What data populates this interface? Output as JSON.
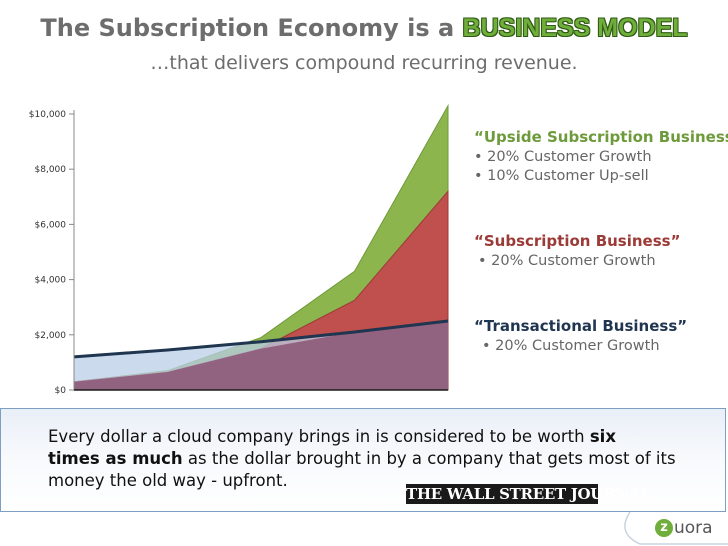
{
  "slide": {
    "title_main": "The Subscription Economy is a ",
    "title_accent": "BUSINESS MODEL",
    "subtitle": "…that delivers compound recurring revenue."
  },
  "legend": [
    {
      "title": "“Upside Subscription Business”",
      "items": [
        "• 20% Customer Growth",
        "• 10% Customer Up-sell"
      ],
      "color": "#8db54e"
    },
    {
      "title": "“Subscription Business”",
      "items": [
        "• 20% Customer Growth"
      ],
      "color": "#c0504d"
    },
    {
      "title": "“Transactional  Business”",
      "items": [
        "• 20% Customer Growth"
      ],
      "color": "#1f3550"
    }
  ],
  "quote": {
    "part1": "Every dollar a cloud company brings in is considered to be worth ",
    "bold1": "six",
    "bold2": "times as much",
    "part2": " as the dollar brought in by a company that gets most of its money the old way - upfront."
  },
  "source": "THE WALL STREET JOURNAL.",
  "brand": {
    "mark": "z",
    "text": "uora"
  },
  "colors": {
    "upside": "#8db54e",
    "subscription": "#c0504d",
    "transactional_fill": "#b9cde5",
    "transactional_line": "#1f3550",
    "overlap": "#8e5a7a"
  },
  "chart_data": {
    "type": "area",
    "x": [
      1,
      2,
      3,
      4,
      5
    ],
    "ylim": [
      0,
      10000
    ],
    "yticks": [
      0,
      2000,
      4000,
      6000,
      8000,
      10000
    ],
    "ytick_labels": [
      "$0",
      "$2,000",
      "$4,000",
      "$6,000",
      "$8,000",
      "$10,000"
    ],
    "grid": false,
    "legend_position": "right",
    "series": [
      {
        "name": "“Upside Subscription Business”",
        "values": [
          300,
          700,
          1900,
          4300,
          10300
        ]
      },
      {
        "name": "“Subscription Business”",
        "values": [
          300,
          650,
          1500,
          3250,
          7200
        ]
      },
      {
        "name": "“Transactional  Business”",
        "values": [
          1200,
          1450,
          1750,
          2100,
          2500
        ]
      }
    ]
  }
}
